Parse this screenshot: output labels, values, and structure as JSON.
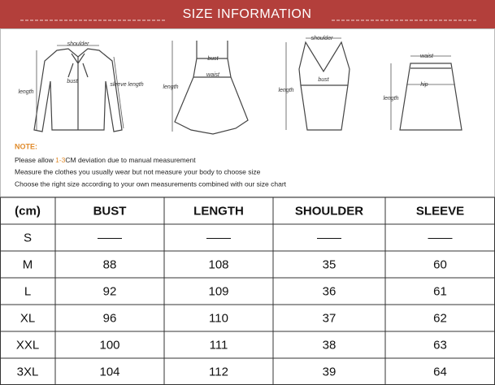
{
  "header": {
    "title": "SIZE INFORMATION"
  },
  "figures": [
    {
      "labels": [
        "shoulder",
        "bust",
        "sleeve length",
        "length"
      ]
    },
    {
      "labels": [
        "bust",
        "waist",
        "length"
      ]
    },
    {
      "labels": [
        "shoulder",
        "bust",
        "length"
      ]
    },
    {
      "labels": [
        "waist",
        "hip",
        "length"
      ]
    }
  ],
  "note": {
    "title": "NOTE:",
    "line1": [
      "Please allow ",
      "1-3",
      "CM deviation due to manual measurement"
    ],
    "lines": [
      "Measure the clothes you usually wear but not measure your body to choose size",
      "Choose the right size according to your own measurements combined with our size chart"
    ]
  },
  "table": {
    "header": [
      "(cm)",
      "BUST",
      "LENGTH",
      "SHOULDER",
      "SLEEVE"
    ],
    "rows": [
      [
        "S",
        "——",
        "——",
        "——",
        "——"
      ],
      [
        "M",
        88,
        108,
        35,
        60
      ],
      [
        "L",
        92,
        109,
        36,
        61
      ],
      [
        "XL",
        96,
        110,
        37,
        62
      ],
      [
        "XXL",
        100,
        111,
        38,
        63
      ],
      [
        "3XL",
        104,
        112,
        39,
        64
      ]
    ]
  }
}
